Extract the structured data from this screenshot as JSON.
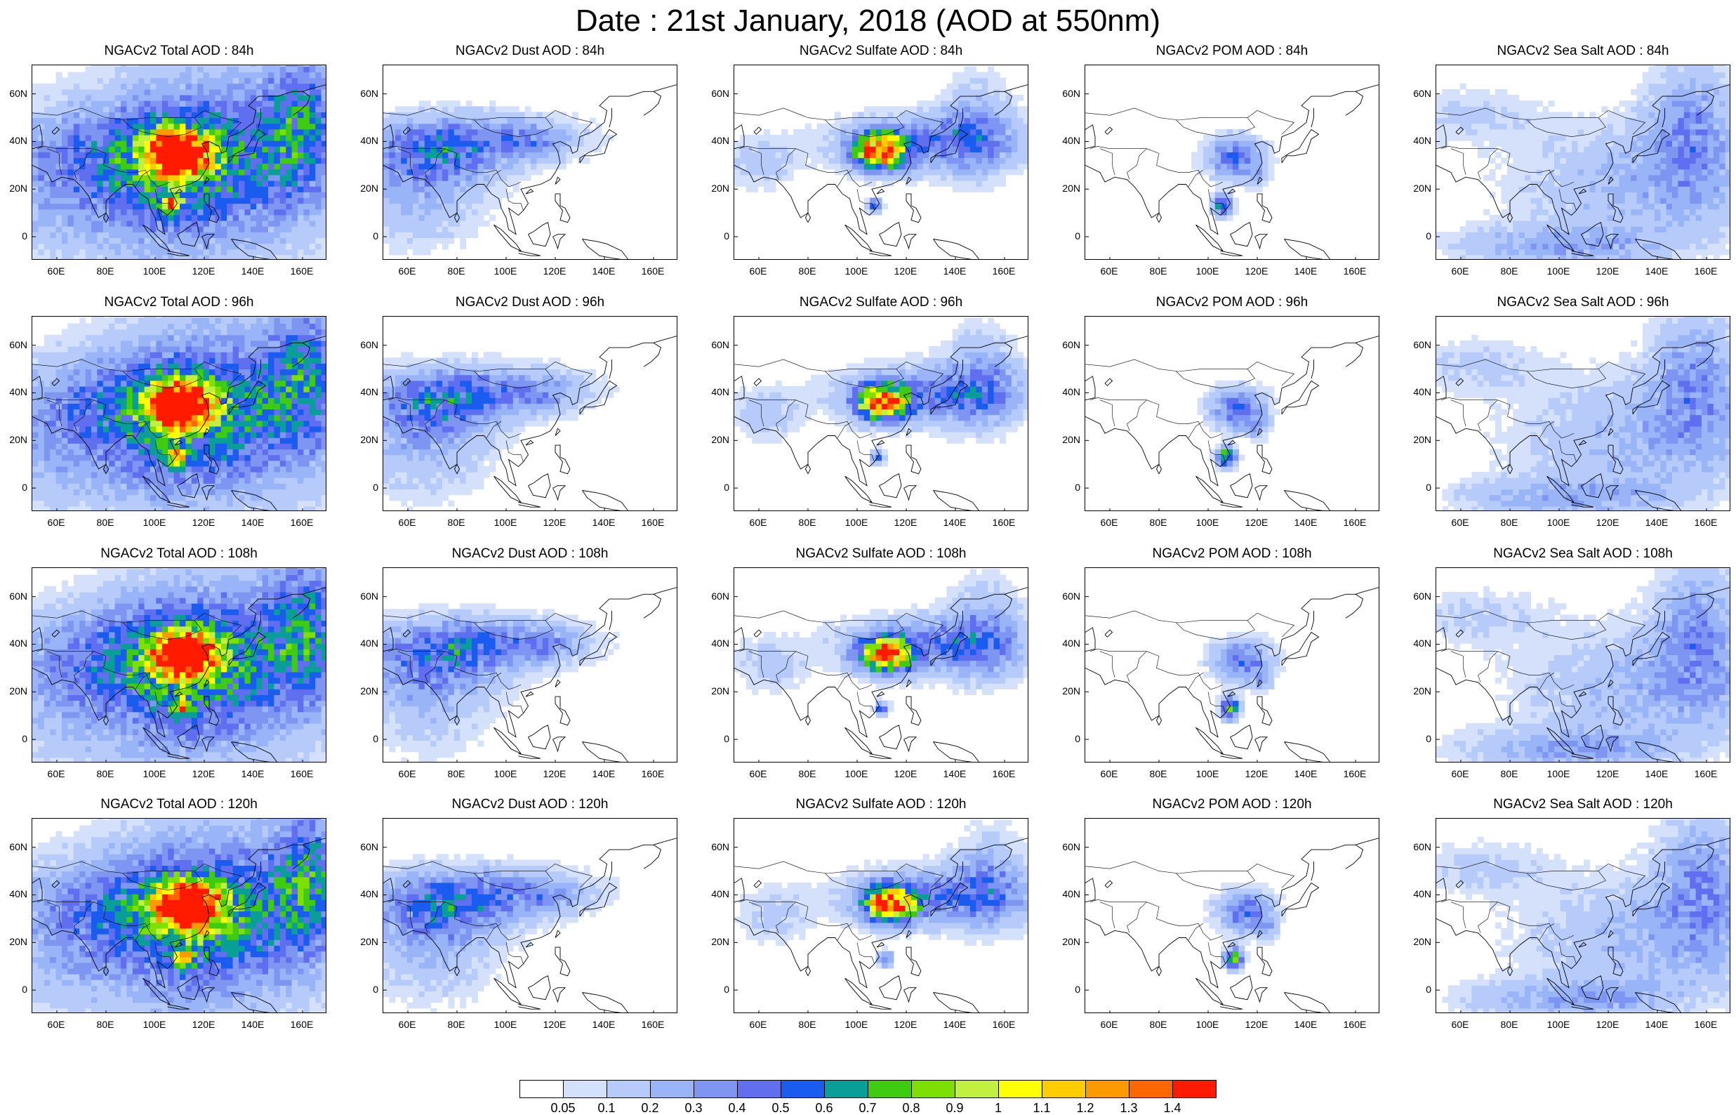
{
  "title": "Date : 21st January, 2018 (AOD at 550nm)",
  "lat_ticks": [
    "60N",
    "40N",
    "20N",
    "0"
  ],
  "lon_ticks": [
    "60E",
    "80E",
    "100E",
    "120E",
    "140E",
    "160E"
  ],
  "rows": [
    [
      "NGACv2 Total AOD : 84h",
      "NGACv2 Dust AOD : 84h",
      "NGACv2 Sulfate AOD : 84h",
      "NGACv2 POM AOD : 84h",
      "NGACv2 Sea Salt AOD : 84h"
    ],
    [
      "NGACv2 Total AOD : 96h",
      "NGACv2 Dust AOD : 96h",
      "NGACv2 Sulfate AOD : 96h",
      "NGACv2 POM AOD : 96h",
      "NGACv2 Sea Salt AOD : 96h"
    ],
    [
      "NGACv2 Total AOD : 108h",
      "NGACv2 Dust AOD : 108h",
      "NGACv2 Sulfate AOD : 108h",
      "NGACv2 POM AOD : 108h",
      "NGACv2 Sea Salt AOD : 108h"
    ],
    [
      "NGACv2 Total AOD : 120h",
      "NGACv2 Dust AOD : 120h",
      "NGACv2 Sulfate AOD : 120h",
      "NGACv2 POM AOD : 120h",
      "NGACv2 Sea Salt  AOD : 120h"
    ]
  ],
  "colorbar": {
    "labels": [
      "0.05",
      "0.1",
      "0.2",
      "0.3",
      "0.4",
      "0.5",
      "0.6",
      "0.7",
      "0.8",
      "0.9",
      "1",
      "1.1",
      "1.2",
      "1.3",
      "1.4"
    ],
    "colors": [
      "#ffffff",
      "#d5e0fb",
      "#b7cbfa",
      "#99b4f7",
      "#7e96f2",
      "#5f6ff0",
      "#1a5cf0",
      "#0a9e98",
      "#3fcc10",
      "#7ee000",
      "#c2f040",
      "#ffff00",
      "#ffcc00",
      "#ff9900",
      "#ff6600",
      "#ff1a00"
    ]
  }
}
